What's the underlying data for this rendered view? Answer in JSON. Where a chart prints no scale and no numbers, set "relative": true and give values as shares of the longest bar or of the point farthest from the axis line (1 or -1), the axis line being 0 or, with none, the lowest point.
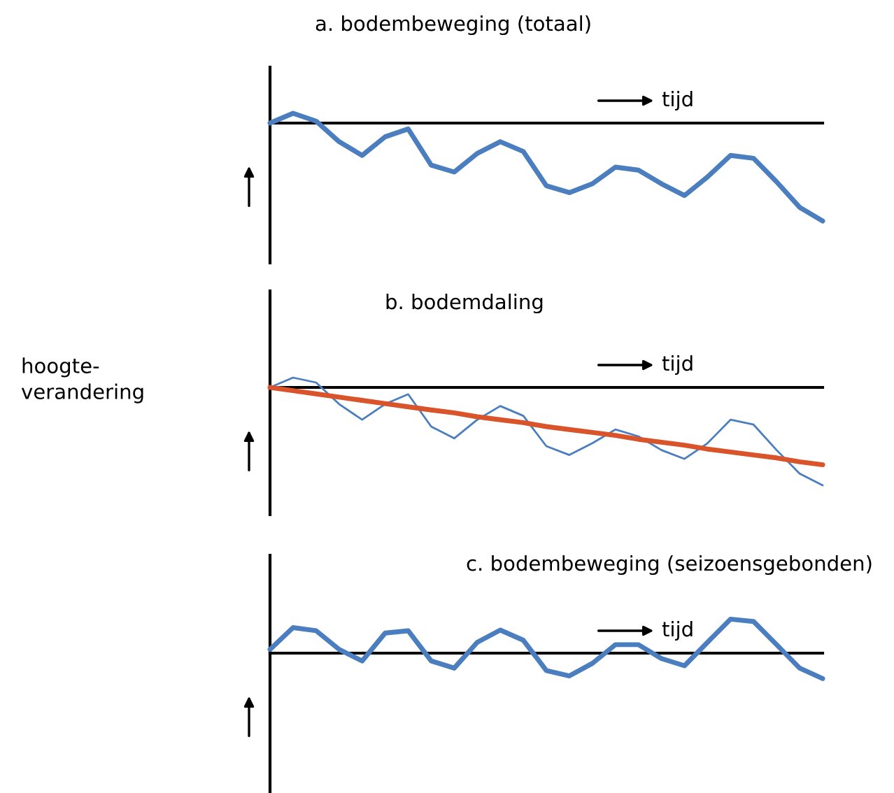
{
  "chart_data": [
    {
      "type": "line",
      "title": "a. bodembeweging (totaal)",
      "xlabel": "tijd",
      "relative": true,
      "line_style": "solid",
      "marker": "none",
      "categories": [
        null,
        null,
        null,
        null,
        null,
        null,
        null,
        null,
        null,
        null,
        null,
        null,
        null,
        null,
        null,
        null,
        null,
        null,
        null,
        null,
        null,
        null,
        null,
        null,
        null
      ],
      "series": [
        {
          "color": "#4a7ebf",
          "values": [
            0,
            0.1,
            0.02,
            -0.19,
            -0.33,
            -0.14,
            -0.06,
            -0.43,
            -0.5,
            -0.31,
            -0.19,
            -0.29,
            -0.64,
            -0.71,
            -0.62,
            -0.45,
            -0.48,
            -0.62,
            -0.74,
            -0.55,
            -0.33,
            -0.36,
            -0.6,
            -0.86,
            -1.0
          ]
        }
      ]
    },
    {
      "type": "line",
      "title": "b. bodemdaling",
      "xlabel": "tijd",
      "ylabel": "hoogte-\nverandering",
      "relative": true,
      "line_style": "solid",
      "marker": "none",
      "categories": [
        null,
        null,
        null,
        null,
        null,
        null,
        null,
        null,
        null,
        null,
        null,
        null,
        null,
        null,
        null,
        null,
        null,
        null,
        null,
        null,
        null,
        null,
        null,
        null,
        null
      ],
      "series": [
        {
          "color": "#4a7ebf",
          "values": [
            0,
            0.1,
            0.05,
            -0.17,
            -0.33,
            -0.17,
            -0.07,
            -0.4,
            -0.52,
            -0.33,
            -0.19,
            -0.29,
            -0.6,
            -0.69,
            -0.57,
            -0.43,
            -0.5,
            -0.64,
            -0.73,
            -0.57,
            -0.33,
            -0.38,
            -0.64,
            -0.88,
            -1.0
          ]
        },
        {
          "color": "#d9532b",
          "values": [
            0,
            -0.033,
            -0.066,
            -0.099,
            -0.132,
            -0.165,
            -0.198,
            -0.23,
            -0.26,
            -0.3,
            -0.33,
            -0.36,
            -0.4,
            -0.43,
            -0.46,
            -0.49,
            -0.53,
            -0.56,
            -0.59,
            -0.63,
            -0.66,
            -0.69,
            -0.72,
            -0.76,
            -0.79
          ]
        }
      ]
    },
    {
      "type": "line",
      "title": "c. bodembeweging (seizoensgebonden)",
      "xlabel": "tijd",
      "relative": true,
      "line_style": "solid",
      "marker": "none",
      "categories": [
        null,
        null,
        null,
        null,
        null,
        null,
        null,
        null,
        null,
        null,
        null,
        null,
        null,
        null,
        null,
        null,
        null,
        null,
        null,
        null,
        null,
        null,
        null,
        null,
        null
      ],
      "series": [
        {
          "color": "#4a7ebf",
          "values": [
            0.11,
            0.75,
            0.66,
            0.11,
            -0.23,
            0.59,
            0.66,
            -0.23,
            -0.44,
            0.32,
            0.68,
            0.38,
            -0.51,
            -0.67,
            -0.3,
            0.25,
            0.25,
            -0.16,
            -0.37,
            0.32,
            1.0,
            0.93,
            0.25,
            -0.44,
            -0.75
          ]
        }
      ]
    }
  ]
}
